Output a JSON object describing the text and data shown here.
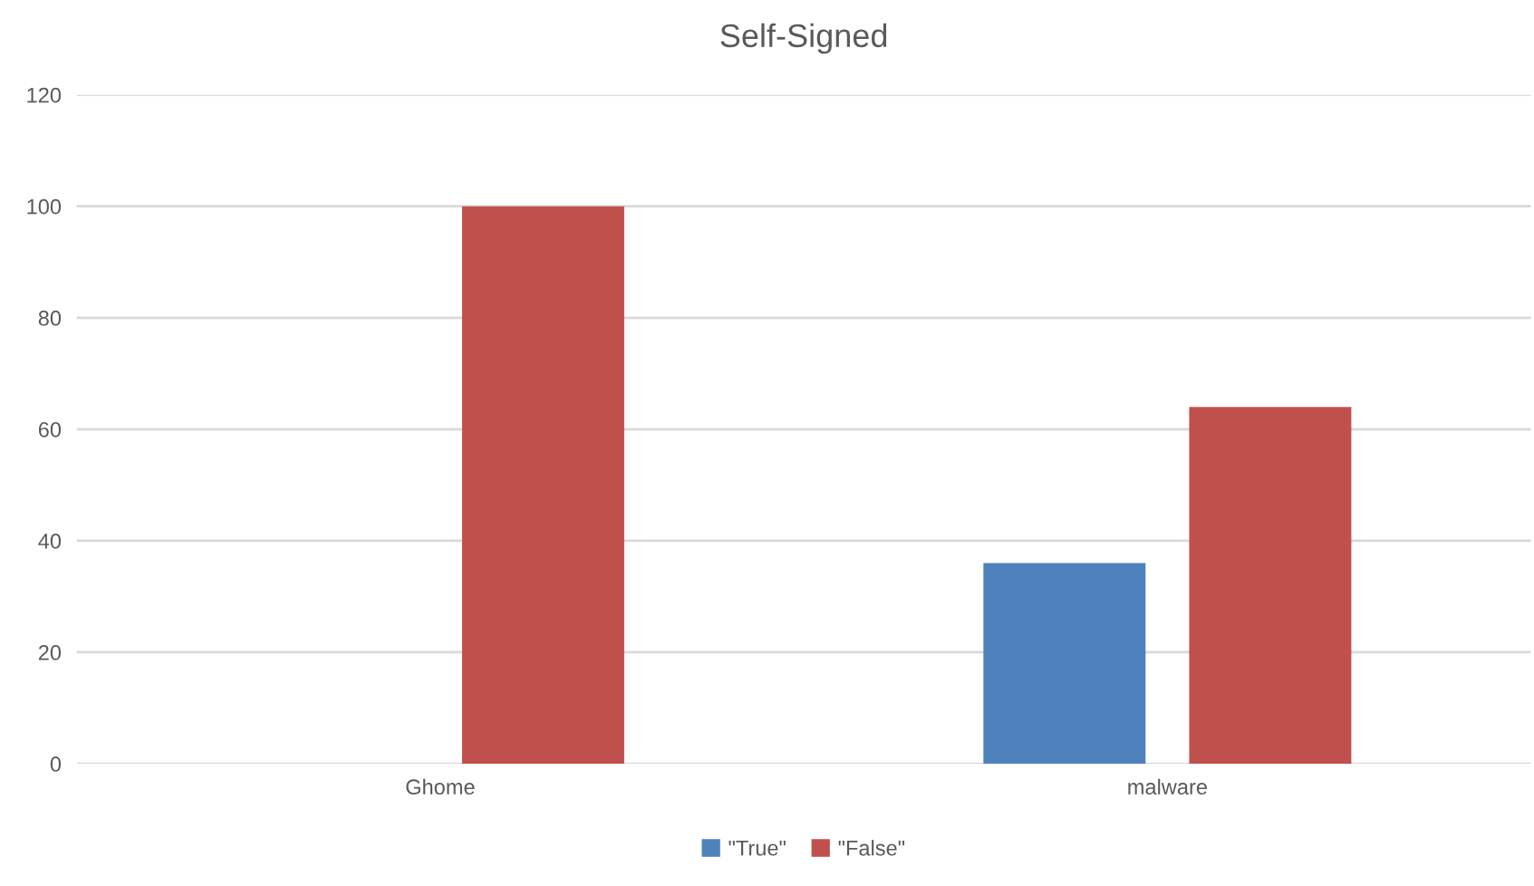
{
  "chart_data": {
    "type": "bar",
    "title": "Self-Signed",
    "categories": [
      "Ghome",
      "malware"
    ],
    "series": [
      {
        "name": "\"True\"",
        "color": "#4f81bd",
        "values": [
          0,
          36
        ]
      },
      {
        "name": "\"False\"",
        "color": "#c0504d",
        "values": [
          100,
          64
        ]
      }
    ],
    "ylim": [
      0,
      120
    ],
    "yticks": [
      0,
      20,
      40,
      60,
      80,
      100,
      120
    ],
    "grid": "y",
    "legend": "bottom"
  }
}
